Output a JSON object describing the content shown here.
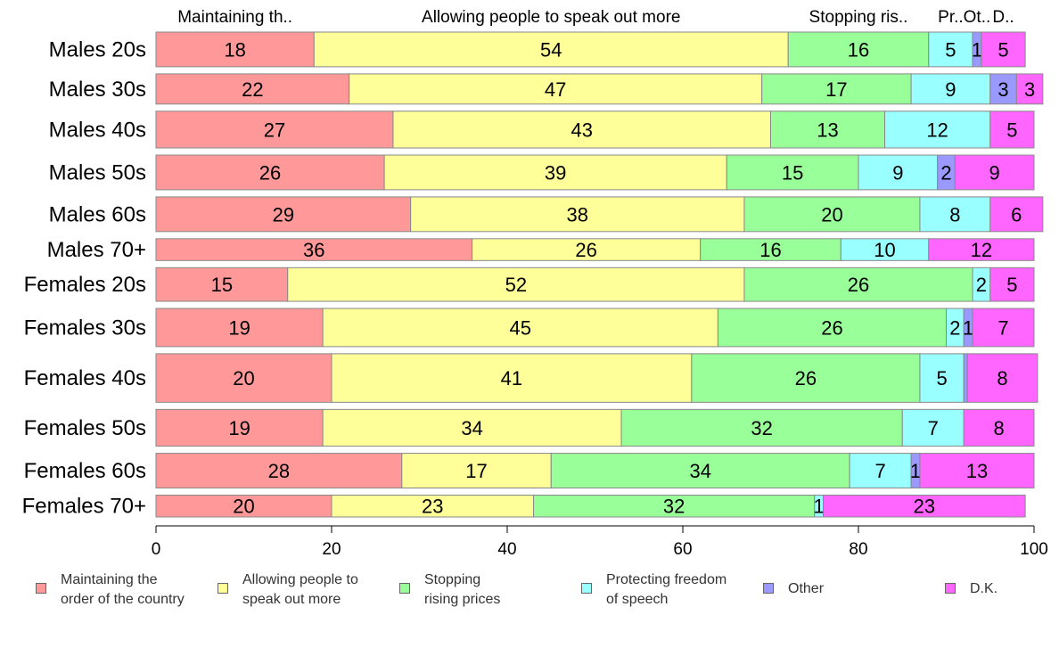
{
  "chart_data": {
    "type": "bar",
    "orientation": "horizontal",
    "stacked": true,
    "categories": [
      "Males 20s",
      "Males 30s",
      "Males 40s",
      "Males 50s",
      "Males 60s",
      "Males 70+",
      "Females 20s",
      "Females 30s",
      "Females 40s",
      "Females 50s",
      "Females 60s",
      "Females 70+"
    ],
    "series": [
      {
        "name": "Maintaining the order of the country",
        "short": "Maintaining th..",
        "color": "#ff9999",
        "values": [
          18,
          22,
          27,
          26,
          29,
          36,
          15,
          19,
          20,
          19,
          28,
          20
        ]
      },
      {
        "name": "Allowing people to speak out more",
        "short": "Allowing people to speak out more",
        "color": "#ffff99",
        "values": [
          54,
          47,
          43,
          39,
          38,
          26,
          52,
          45,
          41,
          34,
          17,
          23
        ]
      },
      {
        "name": "Stopping rising prices",
        "short": "Stopping ris..",
        "color": "#99ff99",
        "values": [
          16,
          17,
          13,
          15,
          20,
          16,
          26,
          26,
          26,
          32,
          34,
          32
        ]
      },
      {
        "name": "Protecting freedom of speech",
        "short": "Pr..",
        "color": "#99ffff",
        "values": [
          5,
          9,
          12,
          9,
          8,
          10,
          2,
          2,
          5,
          7,
          7,
          1
        ]
      },
      {
        "name": "Other",
        "short": "Ot..",
        "color": "#9999ff",
        "values": [
          1,
          3,
          0,
          2,
          0,
          0,
          0,
          1,
          0.4,
          0,
          1,
          0
        ]
      },
      {
        "name": "D.K.",
        "short": "D..",
        "color": "#ff66ff",
        "values": [
          5,
          3,
          5,
          9,
          6,
          12,
          5,
          7,
          8,
          8,
          13,
          23
        ]
      }
    ],
    "row_weights": [
      1.0,
      0.87,
      1.06,
      1.0,
      1.0,
      0.63,
      0.97,
      1.1,
      1.4,
      1.06,
      1.0,
      0.63
    ],
    "xlim": [
      0,
      100
    ],
    "xticks": [
      0,
      20,
      40,
      60,
      80,
      100
    ],
    "legend": {
      "placement": "bottom",
      "labels": [
        "Maintaining the\norder of the country",
        "Allowing people to\nspeak out more",
        "Stopping\nrising prices",
        "Protecting freedom\nof speech",
        "Other",
        "D.K."
      ]
    }
  }
}
